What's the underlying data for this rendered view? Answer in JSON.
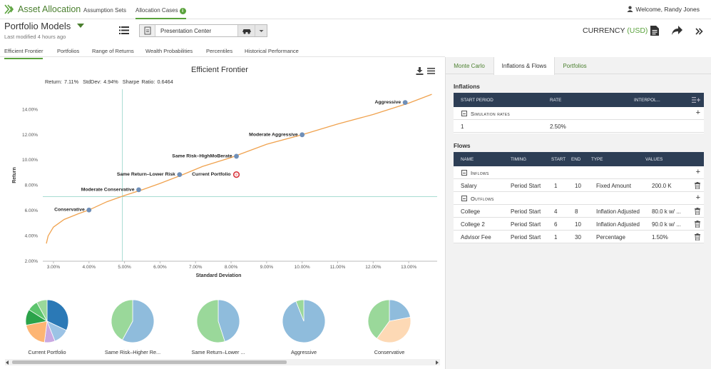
{
  "app": {
    "title": "Asset Allocation",
    "welcome": "Welcome, Randy Jones"
  },
  "nav": {
    "assumption_sets": "Assumption Sets",
    "allocation_cases": "Allocation Cases"
  },
  "header": {
    "title": "Portfolio Models",
    "last_modified": "Last modified 4 hours ago",
    "presentation": "Presentation Center",
    "currency_label": "CURRENCY",
    "currency_code": "(USD)"
  },
  "tabs": [
    "Efficient Frontier",
    "Portfolios",
    "Range of Returns",
    "Wealth Probabilities",
    "Percentiles",
    "Historical Performance"
  ],
  "chart": {
    "title": "Efficient Frontier",
    "stats": {
      "ret": "Return: 7.11%",
      "std": "StdDev: 4.94%",
      "sharpe": "Sharpe Ratio: 0.6464"
    }
  },
  "chart_data": {
    "type": "line",
    "title": "Efficient Frontier",
    "xlabel": "Standard Deviation",
    "ylabel": "Return",
    "xlim": [
      2.7,
      13.8
    ],
    "ylim": [
      2.0,
      15.6
    ],
    "x_ticks": [
      "3.00%",
      "4.00%",
      "5.00%",
      "6.00%",
      "7.00%",
      "8.00%",
      "9.00%",
      "10.00%",
      "11.00%",
      "12.00%",
      "13.00%"
    ],
    "y_ticks": [
      "2.00%",
      "4.00%",
      "6.00%",
      "8.00%",
      "10.00%",
      "12.00%",
      "14.00%"
    ],
    "frontier_curve": [
      [
        2.8,
        3.4
      ],
      [
        2.85,
        4.0
      ],
      [
        3.0,
        4.7
      ],
      [
        3.3,
        5.3
      ],
      [
        3.7,
        5.75
      ],
      [
        4.0,
        6.05
      ],
      [
        4.5,
        6.7
      ],
      [
        5.0,
        7.2
      ],
      [
        5.5,
        7.65
      ],
      [
        6.0,
        8.15
      ],
      [
        6.6,
        8.8
      ],
      [
        7.2,
        9.5
      ],
      [
        8.0,
        10.2
      ],
      [
        9.0,
        11.25
      ],
      [
        10.0,
        12.0
      ],
      [
        11.0,
        12.85
      ],
      [
        12.0,
        13.6
      ],
      [
        13.0,
        14.5
      ],
      [
        13.65,
        15.2
      ]
    ],
    "points": [
      {
        "name": "Conservative",
        "x": 4.0,
        "y": 6.05
      },
      {
        "name": "Moderate Conservative",
        "x": 5.4,
        "y": 7.65
      },
      {
        "name": "Same Return–Lower Risk",
        "x": 6.55,
        "y": 8.85
      },
      {
        "name": "Same Risk–HighMoBerate",
        "x": 8.15,
        "y": 10.3
      },
      {
        "name": "Moderate Aggressive",
        "x": 10.0,
        "y": 12.0
      },
      {
        "name": "Aggressive",
        "x": 12.9,
        "y": 14.55
      }
    ],
    "current_portfolio": {
      "name": "Current Portfolio",
      "x": 8.15,
      "y": 8.85
    },
    "crosshair": {
      "x": 4.94,
      "y": 7.11
    }
  },
  "pies": [
    {
      "label": "Current Portfolio",
      "slices": [
        {
          "v": 32,
          "c": "#2b79b6"
        },
        {
          "v": 12,
          "c": "#9cc3e5"
        },
        {
          "v": 8,
          "c": "#c9a9e2"
        },
        {
          "v": 20,
          "c": "#fdb574"
        },
        {
          "v": 12,
          "c": "#2ba34a"
        },
        {
          "v": 8,
          "c": "#5cc46d"
        },
        {
          "v": 8,
          "c": "#9ad89a"
        }
      ]
    },
    {
      "label": "Same Risk–Higher Re...",
      "slices": [
        {
          "v": 58,
          "c": "#8fbcdc"
        },
        {
          "v": 42,
          "c": "#9ad89a"
        }
      ]
    },
    {
      "label": "Same Return–Lower ...",
      "slices": [
        {
          "v": 45,
          "c": "#8fbcdc"
        },
        {
          "v": 55,
          "c": "#9ad89a"
        }
      ]
    },
    {
      "label": "Aggressive",
      "slices": [
        {
          "v": 94,
          "c": "#8fbcdc"
        },
        {
          "v": 6,
          "c": "#9ad89a"
        }
      ]
    },
    {
      "label": "Conservative",
      "slices": [
        {
          "v": 22,
          "c": "#8fbcdc"
        },
        {
          "v": 38,
          "c": "#fdd9b5"
        },
        {
          "v": 40,
          "c": "#9ad89a"
        }
      ]
    }
  ],
  "right_panel": {
    "tabs": [
      "Monte Carlo",
      "Inflations & Flows",
      "Portfolios"
    ],
    "inflations_title": "Inflations",
    "inflation_headers": [
      "START PERIOD",
      "RATE",
      "INTERPOL..."
    ],
    "simulation_group": "Simulation rates",
    "inflation_rows": [
      {
        "start": "1",
        "rate": "2.50%"
      }
    ],
    "flows_title": "Flows",
    "flow_headers": [
      "NAME",
      "TIMING",
      "START",
      "END",
      "TYPE",
      "VALUES"
    ],
    "inflows_group": "Inflows",
    "outflows_group": "Outflows",
    "inflows": [
      {
        "name": "Salary",
        "timing": "Period Start",
        "start": "1",
        "end": "10",
        "type": "Fixed Amount",
        "value": "200.0 K"
      }
    ],
    "outflows": [
      {
        "name": "College",
        "timing": "Period Start",
        "start": "4",
        "end": "8",
        "type": "Inflation Adjusted",
        "value": "80.0 k w/ ..."
      },
      {
        "name": "College 2",
        "timing": "Period Start",
        "start": "6",
        "end": "10",
        "type": "Inflation Adjusted",
        "value": "90.0 k w/ ..."
      },
      {
        "name": "Advisor Fee",
        "timing": "Period Start",
        "start": "1",
        "end": "30",
        "type": "Percentage",
        "value": "1.50%"
      }
    ]
  }
}
